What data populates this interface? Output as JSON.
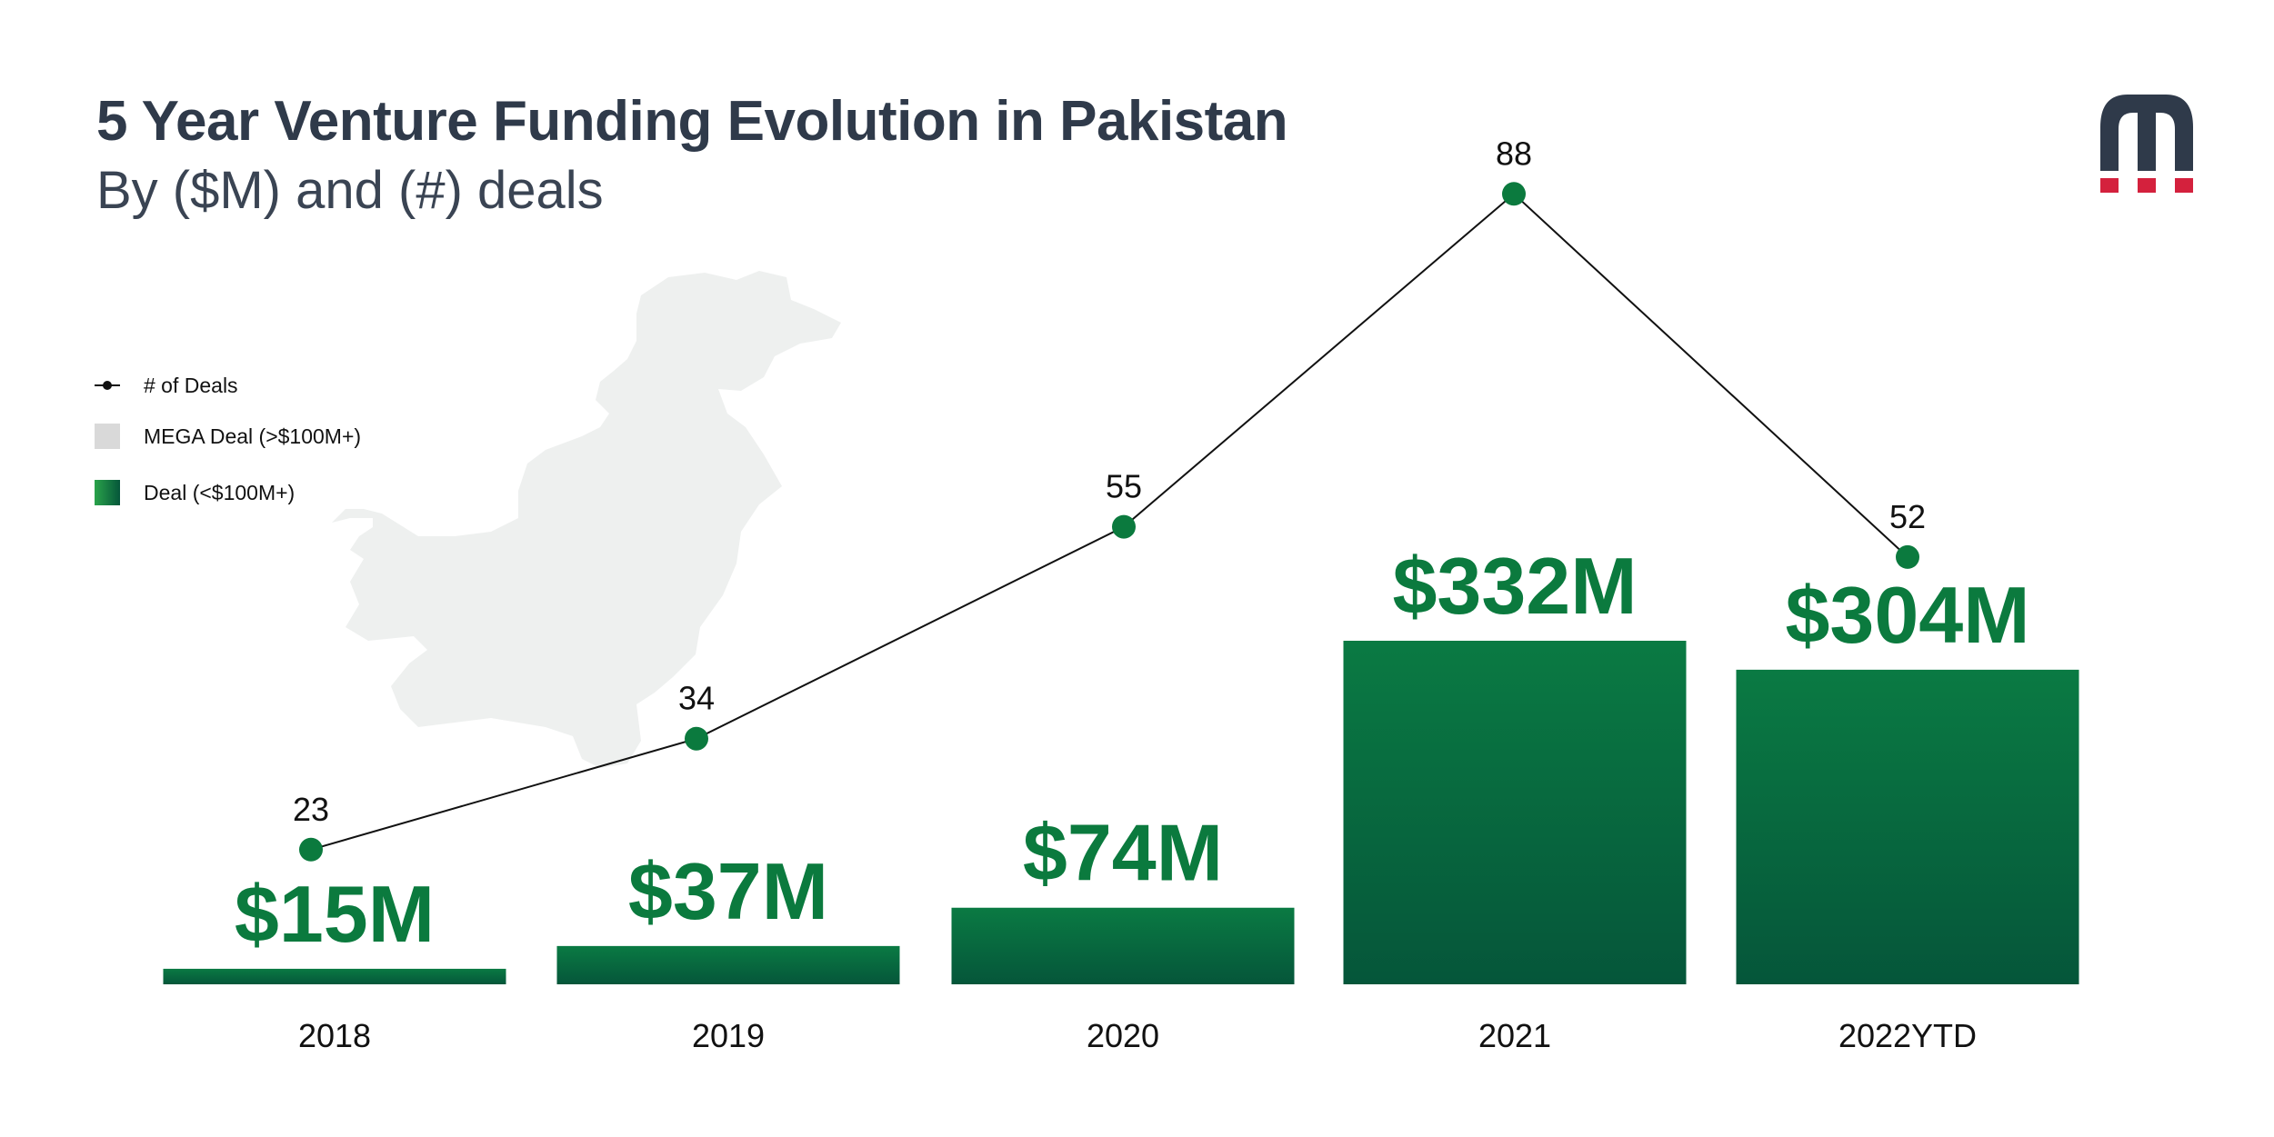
{
  "header": {
    "title": "5 Year Venture Funding Evolution in Pakistan",
    "subtitle": "By ($M) and (#) deals"
  },
  "legend": {
    "deals_label": "# of Deals",
    "mega_label": "MEGA Deal (>$100M+)",
    "deal_label": "Deal (<$100M+)"
  },
  "logo": {
    "icon": "m-logo-icon"
  },
  "colors": {
    "bar_top": "#0a7a43",
    "bar_bottom": "#05563a",
    "value_text": "#0b7a3e",
    "line": "#111111",
    "marker": "#0b7a3e",
    "mega": "#d9d9d9",
    "map": "#eef0ef",
    "logo_dark": "#2f3a4a",
    "logo_red": "#d4213d"
  },
  "chart_data": {
    "type": "bar",
    "categories": [
      "2018",
      "2019",
      "2020",
      "2021",
      "2022YTD"
    ],
    "series": [
      {
        "name": "Deal (<$100M+)",
        "values": [
          15,
          37,
          74,
          332,
          304
        ],
        "labels": [
          "$15M",
          "$37M",
          "$74M",
          "$332M",
          "$304M"
        ]
      },
      {
        "name": "# of Deals",
        "type": "line",
        "values": [
          23,
          34,
          55,
          88,
          52
        ]
      }
    ],
    "ylim_funding": [
      0,
      400
    ],
    "ylim_deals": [
      0,
      100
    ],
    "grid": false,
    "legend_position": "left"
  }
}
